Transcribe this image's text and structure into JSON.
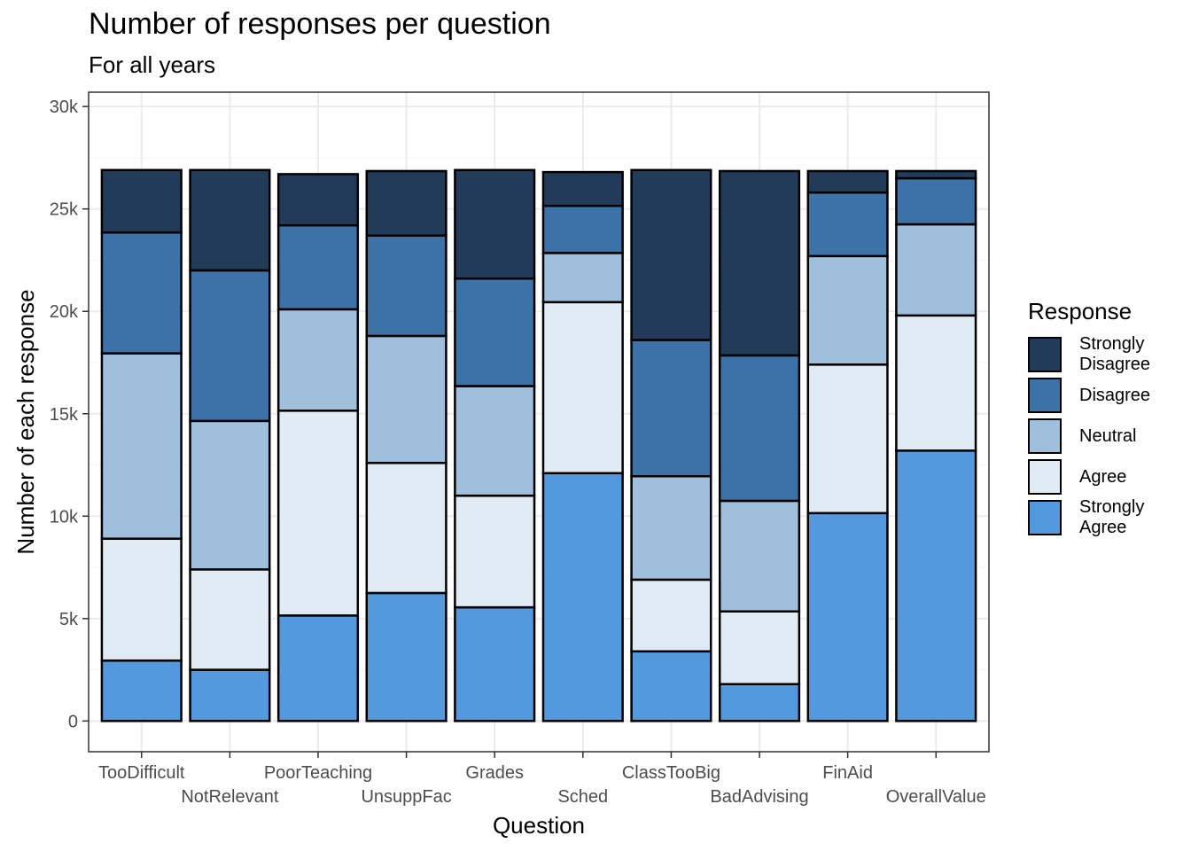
{
  "chart_data": {
    "type": "bar",
    "stacked": true,
    "title": "Number of responses per question",
    "subtitle": "For all years",
    "xlabel": "Question",
    "ylabel": "Number of each response",
    "categories": [
      "TooDifficult",
      "NotRelevant",
      "PoorTeaching",
      "UnsuppFac",
      "Grades",
      "Sched",
      "ClassTooBig",
      "BadAdvising",
      "FinAid",
      "OverallValue"
    ],
    "ylim": [
      -1500,
      30700
    ],
    "yticks": [
      0,
      5000,
      10000,
      15000,
      20000,
      25000,
      30000
    ],
    "ytick_labels": [
      "0",
      "5k",
      "10k",
      "15k",
      "20k",
      "25k",
      "30k"
    ],
    "grid": true,
    "legend_title": "Response",
    "legend_position": "right",
    "series": [
      {
        "name": "Strongly Agree",
        "color": "#5499DE",
        "values": [
          2950,
          2500,
          5150,
          6250,
          5550,
          12100,
          3400,
          1800,
          10150,
          13200
        ]
      },
      {
        "name": "Agree",
        "color": "#E0EBF4",
        "values": [
          5950,
          4900,
          10000,
          6350,
          5450,
          8350,
          3500,
          3550,
          7250,
          6600
        ]
      },
      {
        "name": "Neutral",
        "color": "#9FBFDD",
        "values": [
          9050,
          7250,
          4950,
          6200,
          5350,
          2400,
          5050,
          5400,
          5300,
          4450
        ]
      },
      {
        "name": "Disagree",
        "color": "#3C72A7",
        "values": [
          5900,
          7350,
          4100,
          4900,
          5250,
          2300,
          6650,
          7100,
          3100,
          2250
        ]
      },
      {
        "name": "Strongly Disagree",
        "color": "#223B59",
        "values": [
          3050,
          4900,
          2500,
          3150,
          5300,
          1650,
          8300,
          9000,
          1050,
          350
        ]
      }
    ],
    "legend_order": [
      "Strongly Disagree",
      "Disagree",
      "Neutral",
      "Agree",
      "Strongly Agree"
    ],
    "legend_lines": {
      "Strongly Disagree": [
        "Strongly",
        "Disagree"
      ],
      "Disagree": [
        "Disagree"
      ],
      "Neutral": [
        "Neutral"
      ],
      "Agree": [
        "Agree"
      ],
      "Strongly Agree": [
        "Strongly",
        "Agree"
      ]
    }
  }
}
